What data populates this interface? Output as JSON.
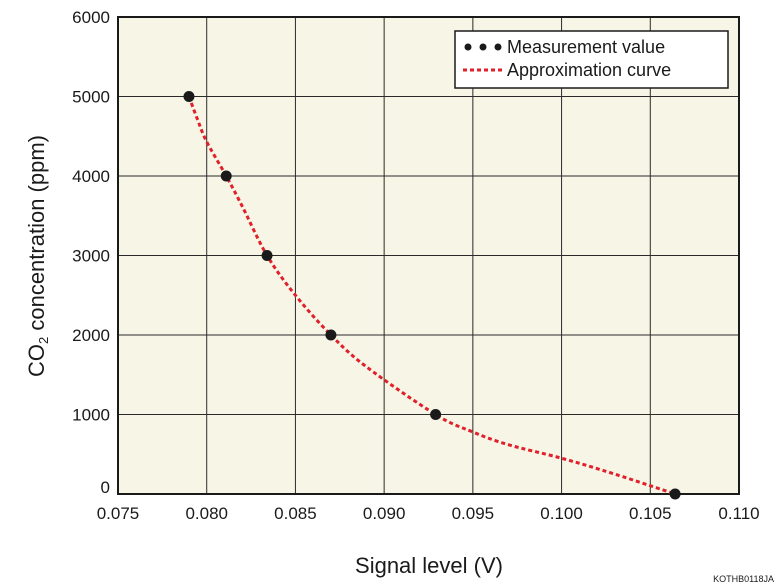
{
  "chart_data": {
    "type": "scatter",
    "title": "",
    "xlabel": "Signal level (V)",
    "ylabel_main": "CO",
    "ylabel_sub": "2",
    "ylabel_rest": " concentration (ppm)",
    "xlim": [
      0.075,
      0.11
    ],
    "ylim": [
      0,
      6000
    ],
    "x_ticks": [
      "0.075",
      "0.080",
      "0.085",
      "0.090",
      "0.095",
      "0.100",
      "0.105",
      "0.110"
    ],
    "y_ticks": [
      "0",
      "1000",
      "2000",
      "3000",
      "4000",
      "5000",
      "6000"
    ],
    "grid": true,
    "legend_position": "top-right",
    "series": [
      {
        "name": "Measurement value",
        "style": "markers",
        "color": "#1a1a1a",
        "x": [
          0.079,
          0.0811,
          0.0834,
          0.087,
          0.0929,
          0.1064
        ],
        "y": [
          5000,
          4000,
          3000,
          2000,
          1000,
          0
        ]
      },
      {
        "name": "Approximation curve",
        "style": "dotted-line",
        "color": "#e0202a",
        "x": [
          0.079,
          0.0795,
          0.08,
          0.0811,
          0.082,
          0.0834,
          0.085,
          0.087,
          0.089,
          0.0929,
          0.095,
          0.097,
          0.1,
          0.103,
          0.1064
        ],
        "y": [
          5000,
          4700,
          4430,
          4000,
          3620,
          3000,
          2500,
          2000,
          1600,
          1000,
          780,
          620,
          450,
          250,
          0
        ]
      }
    ],
    "figure_code": "KOTHB0118JA"
  }
}
